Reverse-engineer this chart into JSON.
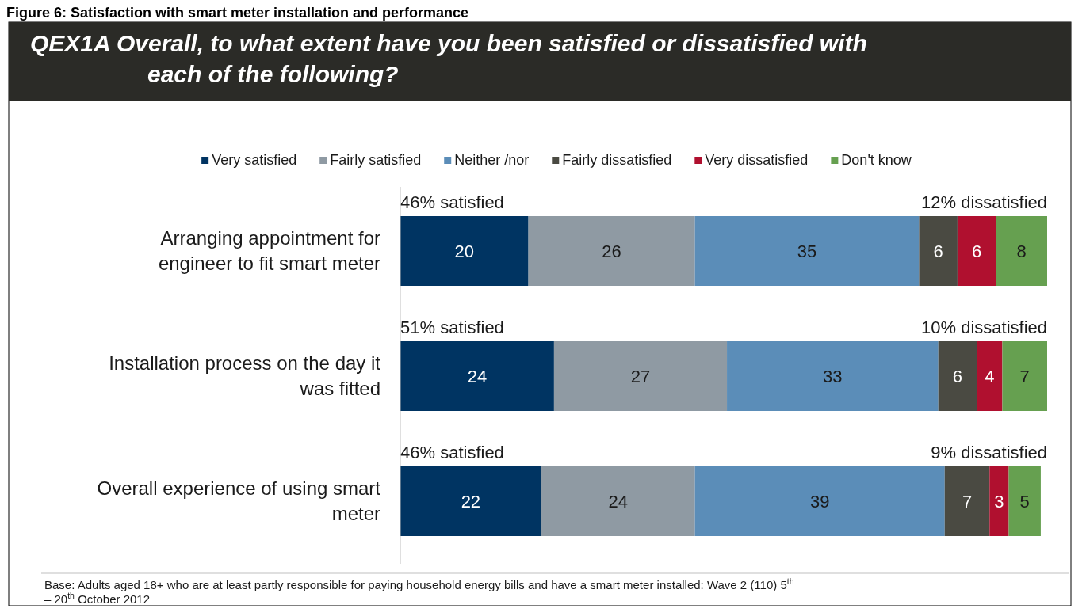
{
  "chart_data": {
    "type": "bar",
    "orientation": "horizontal",
    "stacked": true,
    "data_labels": true,
    "legend": "top",
    "title": "Figure 6: Satisfaction with smart meter installation and performance",
    "subtitle": "QEX1A  Overall, to what extent have you been satisfied or dissatisfied with each of the following?",
    "categories": [
      "Arranging appointment for engineer to fit smart meter",
      "Installation process on the day it was fitted",
      "Overall experience of using smart meter"
    ],
    "series": [
      {
        "name": "Very satisfied",
        "color": "#003462",
        "values": [
          20,
          24,
          22
        ]
      },
      {
        "name": "Fairly satisfied",
        "color": "#8f9aa3",
        "values": [
          26,
          27,
          24
        ]
      },
      {
        "name": "Neither /nor",
        "color": "#5b8db8",
        "values": [
          35,
          33,
          39
        ]
      },
      {
        "name": "Fairly dissatisfied",
        "color": "#4a4a42",
        "values": [
          6,
          6,
          7
        ]
      },
      {
        "name": "Very dissatisfied",
        "color": "#b0102f",
        "values": [
          6,
          4,
          3
        ]
      },
      {
        "name": "Don't know",
        "color": "#66a050",
        "values": [
          8,
          7,
          5
        ]
      }
    ],
    "annotations": [
      "46% satisfied",
      "12% dissatisfied",
      "51% satisfied",
      "10% dissatisfied",
      "46% satisfied",
      "9% dissatisfied",
      "Base:  Adults aged 18+ who are at least partly responsible for paying household energy bills and have a smart meter installed: Wave 2 (110) 5$^{th}$ – 20$^{th}$ October 2012"
    ]
  }
}
